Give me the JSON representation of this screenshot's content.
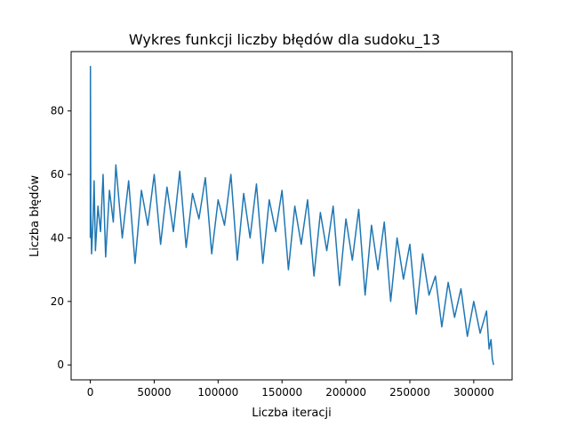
{
  "chart_data": {
    "type": "line",
    "title": "Wykres funkcji liczby błędów dla sudoku_13",
    "xlabel": "Liczba iteracji",
    "ylabel": "Liczba błędów",
    "xlim": [
      -15000,
      330000
    ],
    "ylim": [
      -4.7,
      98.7
    ],
    "xticks": [
      0,
      50000,
      100000,
      150000,
      200000,
      250000,
      300000
    ],
    "yticks": [
      0,
      20,
      40,
      60,
      80
    ],
    "grid": false,
    "line_color": "#1f77b4",
    "series": [
      {
        "x": [
          0,
          100,
          400,
          1000,
          2000,
          3000,
          4000,
          6000,
          8000,
          10000,
          12000,
          15000,
          18000,
          20000,
          25000,
          30000,
          35000,
          40000,
          45000,
          50000,
          55000,
          60000,
          65000,
          70000,
          75000,
          80000,
          85000,
          90000,
          95000,
          100000,
          105000,
          110000,
          115000,
          120000,
          125000,
          130000,
          135000,
          140000,
          145000,
          150000,
          155000,
          160000,
          165000,
          170000,
          175000,
          180000,
          185000,
          190000,
          195000,
          200000,
          205000,
          210000,
          215000,
          220000,
          225000,
          230000,
          235000,
          240000,
          245000,
          250000,
          255000,
          260000,
          265000,
          270000,
          275000,
          280000,
          285000,
          290000,
          295000,
          300000,
          305000,
          310000,
          312000,
          313500,
          314500,
          315500
        ],
        "y": [
          40,
          94,
          48,
          35,
          44,
          58,
          36,
          50,
          42,
          60,
          34,
          55,
          45,
          63,
          40,
          58,
          32,
          55,
          44,
          60,
          38,
          56,
          42,
          61,
          37,
          54,
          46,
          59,
          35,
          52,
          44,
          60,
          33,
          54,
          40,
          57,
          32,
          52,
          42,
          55,
          30,
          50,
          38,
          52,
          28,
          48,
          36,
          50,
          25,
          46,
          33,
          49,
          22,
          44,
          30,
          45,
          20,
          40,
          27,
          38,
          16,
          35,
          22,
          28,
          12,
          26,
          15,
          24,
          9,
          20,
          10,
          17,
          5,
          8,
          2,
          0
        ]
      }
    ]
  }
}
